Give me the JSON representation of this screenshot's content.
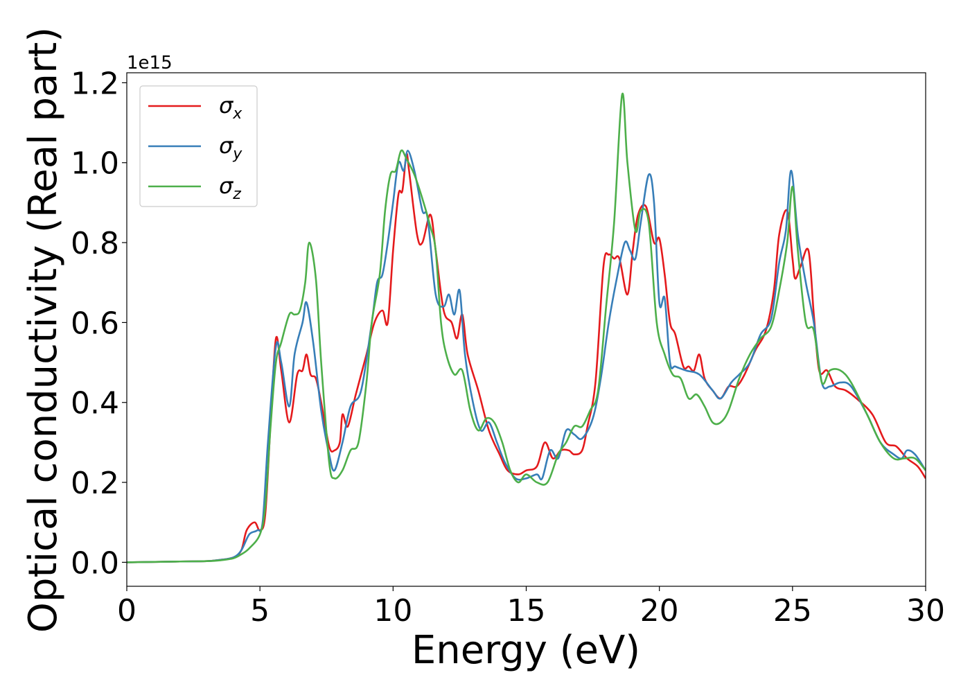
{
  "chart_data": {
    "type": "line",
    "title": "",
    "xlabel": "Energy (eV)",
    "ylabel": "Optical conductivity (Real part)",
    "y_offset_label": "1e15",
    "xlim": [
      0,
      30
    ],
    "ylim": [
      -0.06,
      1.225
    ],
    "x_ticks": [
      0,
      5,
      10,
      15,
      20,
      25,
      30
    ],
    "x_tick_labels": [
      "0",
      "5",
      "10",
      "15",
      "20",
      "25",
      "30"
    ],
    "y_ticks": [
      0.0,
      0.2,
      0.4,
      0.6,
      0.8,
      1.0,
      1.2
    ],
    "y_tick_labels": [
      "0.0",
      "0.2",
      "0.4",
      "0.6",
      "0.8",
      "1.0",
      "1.2"
    ],
    "grid": false,
    "legend_position": "top-left",
    "series": [
      {
        "name": "σx",
        "base": "σ",
        "sub": "x",
        "color": "#e41a1c",
        "points": [
          [
            0,
            0
          ],
          [
            2,
            0.002
          ],
          [
            3,
            0.003
          ],
          [
            3.5,
            0.006
          ],
          [
            4,
            0.012
          ],
          [
            4.3,
            0.03
          ],
          [
            4.5,
            0.08
          ],
          [
            4.8,
            0.1
          ],
          [
            5.0,
            0.08
          ],
          [
            5.2,
            0.12
          ],
          [
            5.4,
            0.35
          ],
          [
            5.6,
            0.56
          ],
          [
            5.8,
            0.48
          ],
          [
            6.1,
            0.35
          ],
          [
            6.4,
            0.47
          ],
          [
            6.6,
            0.48
          ],
          [
            6.75,
            0.52
          ],
          [
            6.9,
            0.47
          ],
          [
            7.1,
            0.46
          ],
          [
            7.3,
            0.4
          ],
          [
            7.6,
            0.29
          ],
          [
            7.8,
            0.28
          ],
          [
            8.0,
            0.3
          ],
          [
            8.1,
            0.37
          ],
          [
            8.3,
            0.34
          ],
          [
            8.6,
            0.42
          ],
          [
            9.0,
            0.52
          ],
          [
            9.3,
            0.6
          ],
          [
            9.6,
            0.63
          ],
          [
            9.8,
            0.6
          ],
          [
            10.0,
            0.78
          ],
          [
            10.2,
            0.92
          ],
          [
            10.35,
            0.93
          ],
          [
            10.5,
            1.02
          ],
          [
            10.6,
            0.98
          ],
          [
            10.9,
            0.82
          ],
          [
            11.1,
            0.8
          ],
          [
            11.4,
            0.87
          ],
          [
            11.6,
            0.78
          ],
          [
            11.9,
            0.63
          ],
          [
            12.2,
            0.6
          ],
          [
            12.4,
            0.56
          ],
          [
            12.6,
            0.62
          ],
          [
            12.8,
            0.52
          ],
          [
            13.2,
            0.43
          ],
          [
            13.6,
            0.33
          ],
          [
            14.0,
            0.27
          ],
          [
            14.3,
            0.23
          ],
          [
            14.7,
            0.22
          ],
          [
            15.0,
            0.23
          ],
          [
            15.4,
            0.24
          ],
          [
            15.7,
            0.3
          ],
          [
            16.0,
            0.26
          ],
          [
            16.3,
            0.28
          ],
          [
            16.6,
            0.28
          ],
          [
            16.8,
            0.27
          ],
          [
            17.1,
            0.28
          ],
          [
            17.3,
            0.34
          ],
          [
            17.6,
            0.45
          ],
          [
            17.9,
            0.74
          ],
          [
            18.1,
            0.77
          ],
          [
            18.3,
            0.76
          ],
          [
            18.5,
            0.76
          ],
          [
            18.8,
            0.67
          ],
          [
            19.0,
            0.78
          ],
          [
            19.2,
            0.87
          ],
          [
            19.5,
            0.89
          ],
          [
            19.8,
            0.8
          ],
          [
            20.0,
            0.81
          ],
          [
            20.2,
            0.72
          ],
          [
            20.4,
            0.6
          ],
          [
            20.6,
            0.57
          ],
          [
            20.9,
            0.49
          ],
          [
            21.1,
            0.49
          ],
          [
            21.3,
            0.48
          ],
          [
            21.5,
            0.52
          ],
          [
            21.7,
            0.46
          ],
          [
            22.0,
            0.43
          ],
          [
            22.3,
            0.41
          ],
          [
            22.6,
            0.44
          ],
          [
            22.9,
            0.44
          ],
          [
            23.2,
            0.47
          ],
          [
            23.6,
            0.53
          ],
          [
            24.0,
            0.58
          ],
          [
            24.3,
            0.68
          ],
          [
            24.5,
            0.82
          ],
          [
            24.8,
            0.88
          ],
          [
            25.0,
            0.76
          ],
          [
            25.1,
            0.71
          ],
          [
            25.3,
            0.74
          ],
          [
            25.6,
            0.78
          ],
          [
            25.8,
            0.62
          ],
          [
            26.0,
            0.48
          ],
          [
            26.3,
            0.48
          ],
          [
            26.6,
            0.44
          ],
          [
            27.0,
            0.43
          ],
          [
            27.4,
            0.41
          ],
          [
            28.0,
            0.37
          ],
          [
            28.5,
            0.3
          ],
          [
            28.9,
            0.29
          ],
          [
            29.3,
            0.26
          ],
          [
            29.7,
            0.24
          ],
          [
            30.0,
            0.21
          ]
        ]
      },
      {
        "name": "σy",
        "base": "σ",
        "sub": "y",
        "color": "#377eb8",
        "points": [
          [
            0,
            0
          ],
          [
            2,
            0.002
          ],
          [
            3,
            0.003
          ],
          [
            3.5,
            0.006
          ],
          [
            4,
            0.012
          ],
          [
            4.3,
            0.03
          ],
          [
            4.6,
            0.07
          ],
          [
            4.9,
            0.08
          ],
          [
            5.1,
            0.1
          ],
          [
            5.3,
            0.3
          ],
          [
            5.6,
            0.54
          ],
          [
            5.8,
            0.5
          ],
          [
            6.1,
            0.39
          ],
          [
            6.3,
            0.52
          ],
          [
            6.6,
            0.6
          ],
          [
            6.75,
            0.65
          ],
          [
            7.0,
            0.55
          ],
          [
            7.3,
            0.38
          ],
          [
            7.6,
            0.27
          ],
          [
            7.8,
            0.23
          ],
          [
            8.1,
            0.3
          ],
          [
            8.4,
            0.39
          ],
          [
            8.8,
            0.43
          ],
          [
            9.2,
            0.6
          ],
          [
            9.4,
            0.7
          ],
          [
            9.6,
            0.72
          ],
          [
            9.8,
            0.8
          ],
          [
            10.0,
            0.9
          ],
          [
            10.2,
            1.0
          ],
          [
            10.4,
            0.98
          ],
          [
            10.55,
            1.03
          ],
          [
            10.8,
            0.98
          ],
          [
            11.1,
            0.88
          ],
          [
            11.3,
            0.86
          ],
          [
            11.6,
            0.67
          ],
          [
            11.9,
            0.64
          ],
          [
            12.1,
            0.67
          ],
          [
            12.3,
            0.62
          ],
          [
            12.5,
            0.68
          ],
          [
            12.7,
            0.52
          ],
          [
            13.0,
            0.4
          ],
          [
            13.3,
            0.33
          ],
          [
            13.6,
            0.35
          ],
          [
            13.9,
            0.3
          ],
          [
            14.2,
            0.25
          ],
          [
            14.6,
            0.21
          ],
          [
            15.0,
            0.21
          ],
          [
            15.4,
            0.22
          ],
          [
            15.6,
            0.21
          ],
          [
            15.9,
            0.28
          ],
          [
            16.2,
            0.26
          ],
          [
            16.5,
            0.33
          ],
          [
            16.8,
            0.32
          ],
          [
            17.1,
            0.31
          ],
          [
            17.5,
            0.36
          ],
          [
            17.8,
            0.46
          ],
          [
            18.1,
            0.6
          ],
          [
            18.4,
            0.71
          ],
          [
            18.7,
            0.8
          ],
          [
            18.9,
            0.78
          ],
          [
            19.1,
            0.76
          ],
          [
            19.3,
            0.85
          ],
          [
            19.6,
            0.97
          ],
          [
            19.8,
            0.9
          ],
          [
            20.0,
            0.65
          ],
          [
            20.2,
            0.66
          ],
          [
            20.4,
            0.5
          ],
          [
            20.6,
            0.49
          ],
          [
            21.0,
            0.48
          ],
          [
            21.5,
            0.47
          ],
          [
            22.0,
            0.43
          ],
          [
            22.3,
            0.41
          ],
          [
            22.7,
            0.45
          ],
          [
            23.0,
            0.47
          ],
          [
            23.4,
            0.5
          ],
          [
            23.8,
            0.57
          ],
          [
            24.2,
            0.61
          ],
          [
            24.5,
            0.75
          ],
          [
            24.75,
            0.83
          ],
          [
            24.95,
            0.98
          ],
          [
            25.2,
            0.82
          ],
          [
            25.5,
            0.7
          ],
          [
            25.8,
            0.6
          ],
          [
            26.1,
            0.45
          ],
          [
            26.4,
            0.44
          ],
          [
            26.8,
            0.45
          ],
          [
            27.2,
            0.44
          ],
          [
            27.8,
            0.37
          ],
          [
            28.3,
            0.3
          ],
          [
            28.8,
            0.27
          ],
          [
            29.1,
            0.26
          ],
          [
            29.3,
            0.28
          ],
          [
            29.6,
            0.27
          ],
          [
            30.0,
            0.23
          ]
        ]
      },
      {
        "name": "σz",
        "base": "σ",
        "sub": "z",
        "color": "#4daf4a",
        "points": [
          [
            0,
            0
          ],
          [
            2,
            0.002
          ],
          [
            3,
            0.003
          ],
          [
            3.5,
            0.005
          ],
          [
            4,
            0.01
          ],
          [
            4.3,
            0.02
          ],
          [
            4.6,
            0.035
          ],
          [
            5.0,
            0.07
          ],
          [
            5.2,
            0.14
          ],
          [
            5.4,
            0.34
          ],
          [
            5.6,
            0.5
          ],
          [
            5.8,
            0.55
          ],
          [
            6.1,
            0.62
          ],
          [
            6.3,
            0.62
          ],
          [
            6.5,
            0.63
          ],
          [
            6.7,
            0.7
          ],
          [
            6.85,
            0.8
          ],
          [
            7.1,
            0.71
          ],
          [
            7.3,
            0.5
          ],
          [
            7.6,
            0.25
          ],
          [
            7.8,
            0.21
          ],
          [
            8.1,
            0.23
          ],
          [
            8.4,
            0.28
          ],
          [
            8.7,
            0.3
          ],
          [
            9.0,
            0.45
          ],
          [
            9.2,
            0.6
          ],
          [
            9.5,
            0.72
          ],
          [
            9.7,
            0.88
          ],
          [
            9.9,
            0.97
          ],
          [
            10.1,
            0.98
          ],
          [
            10.3,
            1.03
          ],
          [
            10.5,
            1.01
          ],
          [
            10.8,
            0.97
          ],
          [
            11.1,
            0.91
          ],
          [
            11.4,
            0.84
          ],
          [
            11.6,
            0.78
          ],
          [
            11.8,
            0.6
          ],
          [
            12.0,
            0.52
          ],
          [
            12.3,
            0.47
          ],
          [
            12.6,
            0.48
          ],
          [
            12.9,
            0.38
          ],
          [
            13.2,
            0.33
          ],
          [
            13.5,
            0.36
          ],
          [
            13.8,
            0.35
          ],
          [
            14.1,
            0.3
          ],
          [
            14.4,
            0.23
          ],
          [
            14.7,
            0.2
          ],
          [
            15.0,
            0.22
          ],
          [
            15.4,
            0.2
          ],
          [
            15.8,
            0.2
          ],
          [
            16.2,
            0.27
          ],
          [
            16.5,
            0.3
          ],
          [
            16.8,
            0.34
          ],
          [
            17.1,
            0.34
          ],
          [
            17.4,
            0.38
          ],
          [
            17.7,
            0.43
          ],
          [
            18.0,
            0.64
          ],
          [
            18.3,
            0.85
          ],
          [
            18.6,
            1.17
          ],
          [
            18.8,
            1.0
          ],
          [
            19.1,
            0.83
          ],
          [
            19.3,
            0.88
          ],
          [
            19.6,
            0.85
          ],
          [
            19.9,
            0.6
          ],
          [
            20.2,
            0.52
          ],
          [
            20.5,
            0.47
          ],
          [
            20.8,
            0.46
          ],
          [
            21.1,
            0.41
          ],
          [
            21.4,
            0.42
          ],
          [
            21.7,
            0.39
          ],
          [
            22.0,
            0.35
          ],
          [
            22.3,
            0.35
          ],
          [
            22.6,
            0.38
          ],
          [
            23.0,
            0.46
          ],
          [
            23.4,
            0.52
          ],
          [
            23.8,
            0.56
          ],
          [
            24.2,
            0.59
          ],
          [
            24.5,
            0.68
          ],
          [
            24.8,
            0.8
          ],
          [
            25.0,
            0.94
          ],
          [
            25.2,
            0.78
          ],
          [
            25.5,
            0.6
          ],
          [
            25.8,
            0.58
          ],
          [
            26.1,
            0.45
          ],
          [
            26.4,
            0.48
          ],
          [
            26.8,
            0.48
          ],
          [
            27.2,
            0.45
          ],
          [
            27.8,
            0.37
          ],
          [
            28.3,
            0.3
          ],
          [
            28.8,
            0.26
          ],
          [
            29.2,
            0.26
          ],
          [
            29.6,
            0.26
          ],
          [
            30.0,
            0.23
          ]
        ]
      }
    ]
  }
}
